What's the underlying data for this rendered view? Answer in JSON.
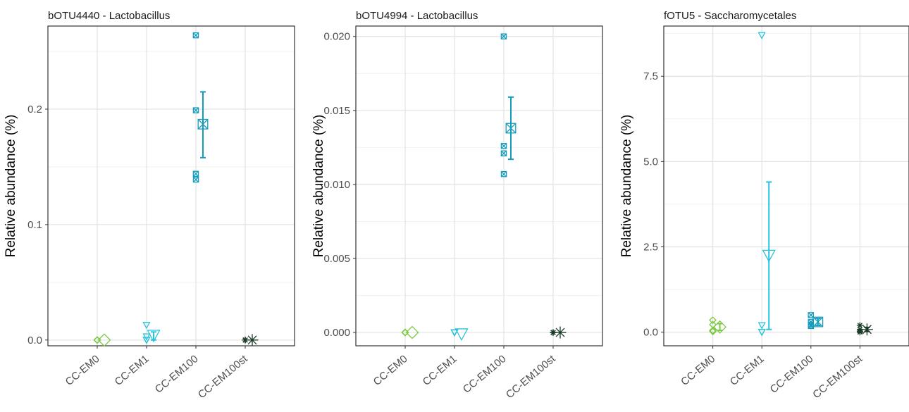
{
  "chart_data": [
    {
      "type": "scatter",
      "title": "bOTU4440 - Lactobacillus",
      "ylabel": "Relative abundance (%)",
      "ylim": [
        -0.005,
        0.272
      ],
      "yticks": [
        0.0,
        0.1,
        0.2
      ],
      "ytick_labels": [
        "0.0",
        "0.1",
        "0.2"
      ],
      "categories": [
        "CC-EM0",
        "CC-EM1",
        "CC-EM100",
        "CC-EM100st"
      ],
      "grid": true,
      "points": [
        [
          0,
          0,
          0,
          0
        ],
        [
          0.013,
          0.003,
          0.0,
          0.0
        ],
        [
          0.264,
          0.199,
          0.144,
          0.139
        ],
        [
          0,
          0,
          0,
          0
        ]
      ],
      "means": [
        0.0,
        0.004,
        0.187,
        0.0
      ],
      "errors": [
        [
          0.0,
          0.0
        ],
        [
          0.0,
          0.007
        ],
        [
          0.158,
          0.215
        ],
        [
          0.0,
          0.0
        ]
      ]
    },
    {
      "type": "scatter",
      "title": "bOTU4994 - Lactobacillus",
      "ylabel": "Relative abundance (%)",
      "ylim": [
        -0.0009,
        0.0207
      ],
      "yticks": [
        0.0,
        0.005,
        0.01,
        0.015,
        0.02
      ],
      "ytick_labels": [
        "0.000",
        "0.005",
        "0.010",
        "0.015",
        "0.020"
      ],
      "categories": [
        "CC-EM0",
        "CC-EM1",
        "CC-EM100",
        "CC-EM100st"
      ],
      "grid": true,
      "points": [
        [
          0,
          0,
          0,
          0
        ],
        [
          0,
          0,
          0,
          0
        ],
        [
          0.02,
          0.0126,
          0.0121,
          0.0107
        ],
        [
          0,
          0,
          0,
          0
        ]
      ],
      "means": [
        0.0,
        -0.0001,
        0.0138,
        0.0
      ],
      "errors": [
        [
          0.0,
          0.0
        ],
        [
          0.0,
          0.0
        ],
        [
          0.0117,
          0.0159
        ],
        [
          0.0,
          0.0
        ]
      ]
    },
    {
      "type": "scatter",
      "title": "fOTU5 - Saccharomycetales",
      "ylabel": "Relative abundance (%)",
      "ylim": [
        -0.4,
        8.97
      ],
      "yticks": [
        0.0,
        2.5,
        5.0,
        7.5
      ],
      "ytick_labels": [
        "0.0",
        "2.5",
        "5.0",
        "7.5"
      ],
      "categories": [
        "CC-EM0",
        "CC-EM1",
        "CC-EM100",
        "CC-EM100st"
      ],
      "grid": true,
      "points": [
        [
          0.35,
          0.22,
          0.05,
          0.02
        ],
        [
          8.7,
          0.2,
          0.0,
          0.0
        ],
        [
          0.5,
          0.3,
          0.22,
          0.18
        ],
        [
          0.2,
          0.08,
          0.03,
          0.0
        ]
      ],
      "means": [
        0.15,
        2.25,
        0.3,
        0.08
      ],
      "errors": [
        [
          0.05,
          0.25
        ],
        [
          0.08,
          4.4
        ],
        [
          0.2,
          0.4
        ],
        [
          0.02,
          0.14
        ]
      ]
    }
  ],
  "colors": {
    "CC-EM0": "#7ac943",
    "CC-EM1": "#29c3dc",
    "CC-EM100": "#139dbd",
    "CC-EM100st": "#1a3a28"
  },
  "shapes": {
    "CC-EM0": "diamond",
    "CC-EM1": "triangle-down",
    "CC-EM100": "square-cross",
    "CC-EM100st": "asterisk"
  }
}
